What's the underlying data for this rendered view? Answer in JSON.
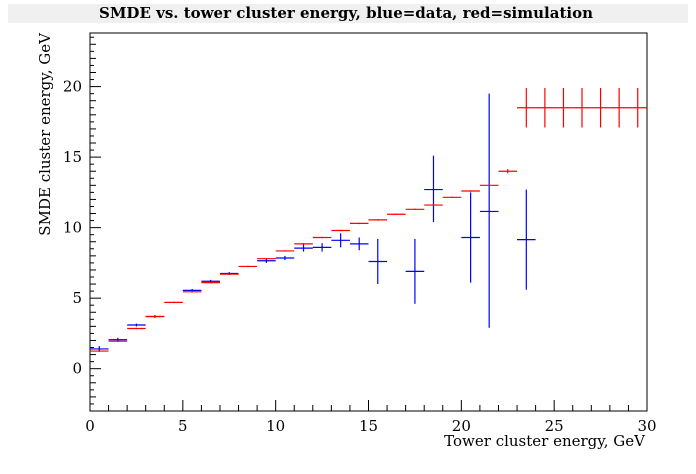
{
  "chart_data": {
    "type": "scatter",
    "title": "SMDE vs. tower cluster energy, blue=data, red=simulation",
    "xlabel": "Tower cluster energy, GeV",
    "ylabel": "SMDE cluster energy, GeV",
    "xlim": [
      0,
      30
    ],
    "ylim": [
      -3,
      23.8
    ],
    "x_ticks": [
      0,
      5,
      10,
      15,
      20,
      25,
      30
    ],
    "y_ticks": [
      0,
      5,
      10,
      15,
      20
    ],
    "x_tick_labels": [
      "0",
      "5",
      "10",
      "15",
      "20",
      "25",
      "30"
    ],
    "y_tick_labels": [
      "0",
      "5",
      "10",
      "15",
      "20"
    ],
    "grid": false,
    "legend": "none",
    "colors": {
      "data": "#0000ff",
      "simulation": "#ff0000",
      "axis": "#000000",
      "title_bg": "#f0f0f0"
    },
    "series": [
      {
        "color": "#0000ff",
        "points": [
          {
            "x0": 0,
            "x1": 1,
            "y": 1.4,
            "ylo": 1.2,
            "yhi": 1.6
          },
          {
            "x0": 1,
            "x1": 2,
            "y": 2.05,
            "ylo": 1.9,
            "yhi": 2.2
          },
          {
            "x0": 2,
            "x1": 3,
            "y": 3.1,
            "ylo": 3.0,
            "yhi": 3.2
          },
          {
            "x0": 3,
            "x1": 4,
            "y": 3.7,
            "ylo": 3.6,
            "yhi": 3.8
          },
          {
            "x0": 5,
            "x1": 6,
            "y": 5.55,
            "ylo": 5.45,
            "yhi": 5.65
          },
          {
            "x0": 6,
            "x1": 7,
            "y": 6.2,
            "ylo": 6.1,
            "yhi": 6.3
          },
          {
            "x0": 7,
            "x1": 8,
            "y": 6.75,
            "ylo": 6.65,
            "yhi": 6.85
          },
          {
            "x0": 9,
            "x1": 10,
            "y": 7.65,
            "ylo": 7.5,
            "yhi": 7.8
          },
          {
            "x0": 10,
            "x1": 11,
            "y": 7.85,
            "ylo": 7.7,
            "yhi": 8.0
          },
          {
            "x0": 11,
            "x1": 12,
            "y": 8.55,
            "ylo": 8.3,
            "yhi": 8.8
          },
          {
            "x0": 12,
            "x1": 13,
            "y": 8.6,
            "ylo": 8.3,
            "yhi": 8.9
          },
          {
            "x0": 13,
            "x1": 14,
            "y": 9.1,
            "ylo": 8.6,
            "yhi": 9.6
          },
          {
            "x0": 14,
            "x1": 15,
            "y": 8.85,
            "ylo": 8.4,
            "yhi": 9.3
          },
          {
            "x0": 15,
            "x1": 16,
            "y": 7.6,
            "ylo": 6.0,
            "yhi": 9.2
          },
          {
            "x0": 17,
            "x1": 18,
            "y": 6.9,
            "ylo": 4.6,
            "yhi": 9.2
          },
          {
            "x0": 18,
            "x1": 19,
            "y": 12.7,
            "ylo": 10.4,
            "yhi": 15.1
          },
          {
            "x0": 20,
            "x1": 21,
            "y": 9.3,
            "ylo": 6.1,
            "yhi": 12.5
          },
          {
            "x0": 21,
            "x1": 22,
            "y": 11.15,
            "ylo": 2.9,
            "yhi": 19.5
          },
          {
            "x0": 23,
            "x1": 24,
            "y": 9.15,
            "ylo": 5.6,
            "yhi": 12.7
          }
        ]
      },
      {
        "color": "#ff0000",
        "points": [
          {
            "x0": 0,
            "x1": 1,
            "y": 1.25,
            "ylo": 1.2,
            "yhi": 1.3
          },
          {
            "x0": 1,
            "x1": 2,
            "y": 1.95,
            "ylo": 1.9,
            "yhi": 2.0
          },
          {
            "x0": 2,
            "x1": 3,
            "y": 2.85,
            "ylo": 2.8,
            "yhi": 2.9
          },
          {
            "x0": 3,
            "x1": 4,
            "y": 3.7,
            "ylo": 3.65,
            "yhi": 3.75
          },
          {
            "x0": 4,
            "x1": 5,
            "y": 4.7,
            "ylo": 4.65,
            "yhi": 4.75
          },
          {
            "x0": 5,
            "x1": 6,
            "y": 5.45,
            "ylo": 5.4,
            "yhi": 5.5
          },
          {
            "x0": 6,
            "x1": 7,
            "y": 6.1,
            "ylo": 6.05,
            "yhi": 6.15
          },
          {
            "x0": 7,
            "x1": 8,
            "y": 6.7,
            "ylo": 6.65,
            "yhi": 6.75
          },
          {
            "x0": 8,
            "x1": 9,
            "y": 7.25,
            "ylo": 7.2,
            "yhi": 7.3
          },
          {
            "x0": 9,
            "x1": 10,
            "y": 7.8,
            "ylo": 7.75,
            "yhi": 7.85
          },
          {
            "x0": 10,
            "x1": 11,
            "y": 8.35,
            "ylo": 8.3,
            "yhi": 8.4
          },
          {
            "x0": 11,
            "x1": 12,
            "y": 8.85,
            "ylo": 8.8,
            "yhi": 8.9
          },
          {
            "x0": 12,
            "x1": 13,
            "y": 9.3,
            "ylo": 9.25,
            "yhi": 9.35
          },
          {
            "x0": 13,
            "x1": 14,
            "y": 9.8,
            "ylo": 9.75,
            "yhi": 9.85
          },
          {
            "x0": 14,
            "x1": 15,
            "y": 10.3,
            "ylo": 10.25,
            "yhi": 10.35
          },
          {
            "x0": 15,
            "x1": 16,
            "y": 10.55,
            "ylo": 10.5,
            "yhi": 10.6
          },
          {
            "x0": 16,
            "x1": 17,
            "y": 10.95,
            "ylo": 10.9,
            "yhi": 11.0
          },
          {
            "x0": 17,
            "x1": 18,
            "y": 11.3,
            "ylo": 11.25,
            "yhi": 11.35
          },
          {
            "x0": 18,
            "x1": 19,
            "y": 11.6,
            "ylo": 11.55,
            "yhi": 11.65
          },
          {
            "x0": 19,
            "x1": 20,
            "y": 12.15,
            "ylo": 12.1,
            "yhi": 12.2
          },
          {
            "x0": 20,
            "x1": 21,
            "y": 12.6,
            "ylo": 12.55,
            "yhi": 12.65
          },
          {
            "x0": 21,
            "x1": 22,
            "y": 13.0,
            "ylo": 12.95,
            "yhi": 13.05
          },
          {
            "x0": 22,
            "x1": 23,
            "y": 14.0,
            "ylo": 13.85,
            "yhi": 14.15
          },
          {
            "x0": 23,
            "x1": 24,
            "y": 18.5,
            "ylo": 17.1,
            "yhi": 19.9
          },
          {
            "x0": 24,
            "x1": 25,
            "y": 18.5,
            "ylo": 17.1,
            "yhi": 19.9
          },
          {
            "x0": 25,
            "x1": 26,
            "y": 18.5,
            "ylo": 17.1,
            "yhi": 19.9
          },
          {
            "x0": 26,
            "x1": 27,
            "y": 18.5,
            "ylo": 17.1,
            "yhi": 19.9
          },
          {
            "x0": 27,
            "x1": 28,
            "y": 18.5,
            "ylo": 17.1,
            "yhi": 19.9
          },
          {
            "x0": 28,
            "x1": 29,
            "y": 18.5,
            "ylo": 17.1,
            "yhi": 19.9
          },
          {
            "x0": 29,
            "x1": 30,
            "y": 18.5,
            "ylo": 17.1,
            "yhi": 19.9
          }
        ]
      }
    ]
  }
}
